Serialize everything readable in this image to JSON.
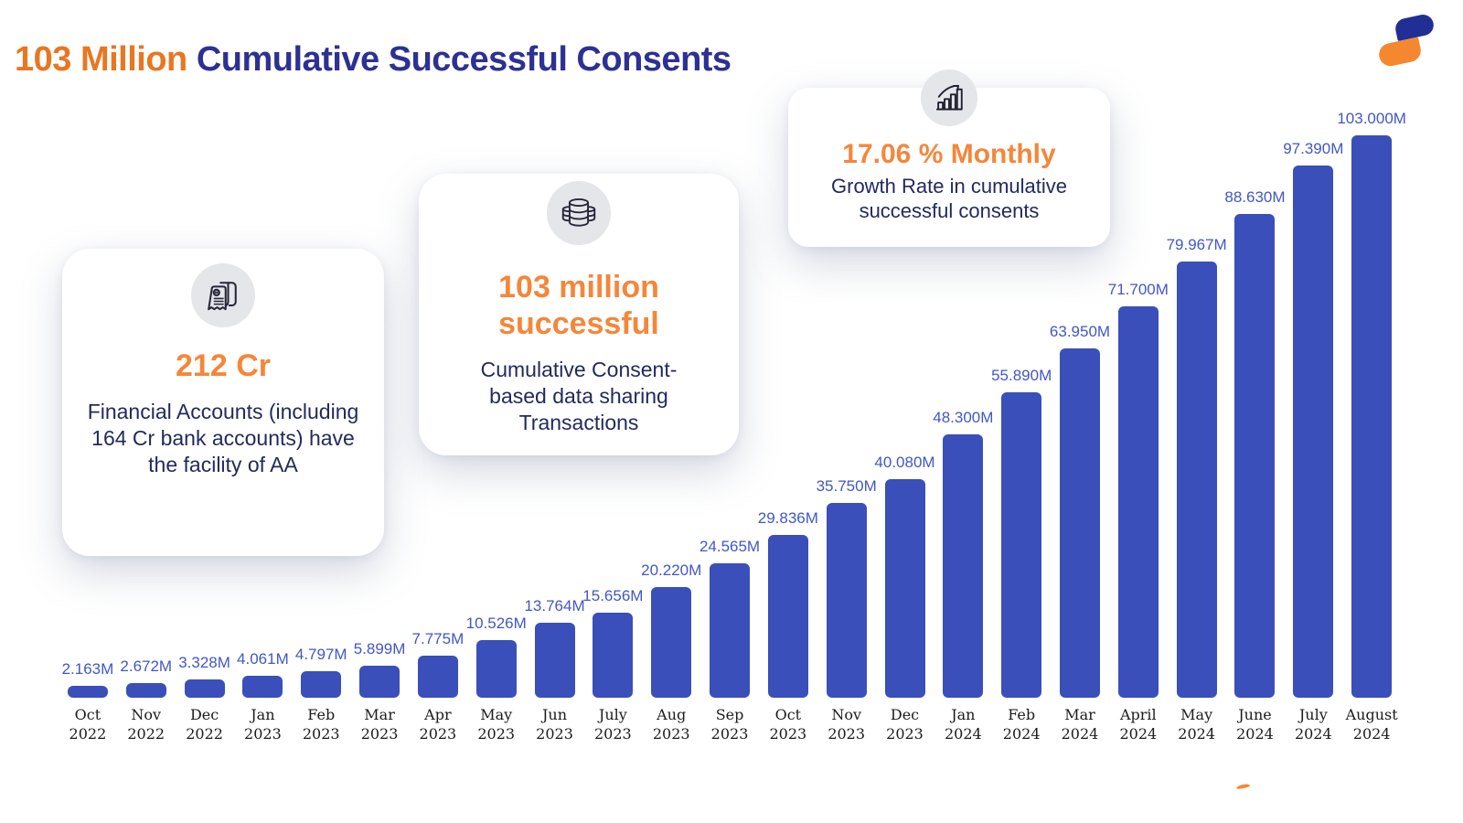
{
  "title": {
    "highlight": "103 Million",
    "rest": "Cumulative Successful Consents"
  },
  "cards": [
    {
      "icon": "receipt-icon",
      "headline": "212 Cr",
      "body": "Financial Accounts (including 164 Cr bank accounts) have the facility of AA"
    },
    {
      "icon": "coin-stack-icon",
      "headline": "103 million successful",
      "body": "Cumulative Consent-based data sharing Transactions"
    },
    {
      "icon": "growth-chart-icon",
      "headline": "17.06 % Monthly",
      "body": "Growth Rate in cumulative successful consents"
    }
  ],
  "chart_data": {
    "type": "bar",
    "title": "103 Million Cumulative Successful Consents",
    "xlabel": "",
    "ylabel": "",
    "ylim": [
      0,
      103
    ],
    "grid": false,
    "legend": false,
    "categories": [
      "Oct 2022",
      "Nov 2022",
      "Dec 2022",
      "Jan 2023",
      "Feb 2023",
      "Mar 2023",
      "Apr 2023",
      "May 2023",
      "Jun 2023",
      "July 2023",
      "Aug 2023",
      "Sep 2023",
      "Oct 2023",
      "Nov 2023",
      "Dec 2023",
      "Jan 2024",
      "Feb 2024",
      "Mar 2024",
      "April 2024",
      "May 2024",
      "June 2024",
      "July 2024",
      "August 2024"
    ],
    "values": [
      2.163,
      2.672,
      3.328,
      4.061,
      4.797,
      5.899,
      7.775,
      10.526,
      13.764,
      15.656,
      20.22,
      24.565,
      29.836,
      35.75,
      40.08,
      48.3,
      55.89,
      63.95,
      71.7,
      79.967,
      88.63,
      97.39,
      103.0
    ],
    "value_labels": [
      "2.163M",
      "2.672M",
      "3.328M",
      "4.061M",
      "4.797M",
      "5.899M",
      "7.775M",
      "10.526M",
      "13.764M",
      "15.656M",
      "20.220M",
      "24.565M",
      "29.836M",
      "35.750M",
      "40.080M",
      "48.300M",
      "55.890M",
      "63.950M",
      "71.700M",
      "79.967M",
      "88.630M",
      "97.390M",
      "103.000M"
    ],
    "bar_color": "#3A4FBA",
    "value_label_color": "#4257C4"
  },
  "colors": {
    "title_orange": "#E87722",
    "card_orange": "#F5863A",
    "navy": "#2D3192",
    "text_navy": "#232A5C",
    "logo_navy": "#202E95",
    "logo_orange": "#F5882F"
  }
}
